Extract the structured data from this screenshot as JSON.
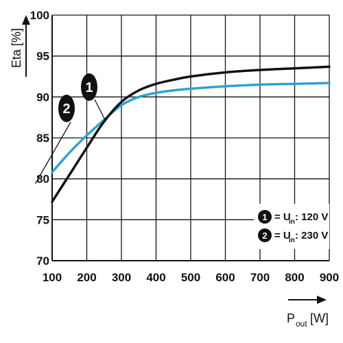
{
  "chart_data": {
    "type": "line",
    "xlabel": "P",
    "xlabel_sub": "out",
    "xlabel_unit": "[W]",
    "ylabel": "Eta [%]",
    "xlim": [
      100,
      900
    ],
    "ylim": [
      70,
      100
    ],
    "xticks": [
      "100",
      "200",
      "300",
      "400",
      "500",
      "600",
      "700",
      "800",
      "900"
    ],
    "yticks": [
      "70",
      "75",
      "80",
      "85",
      "90",
      "95",
      "100"
    ],
    "grid": true,
    "legend_position": "bottom-right",
    "series": [
      {
        "name": "1",
        "color": "#111111",
        "x": [
          100,
          150,
          200,
          250,
          300,
          350,
          400,
          450,
          500,
          600,
          700,
          800,
          900
        ],
        "y": [
          77.2,
          80.5,
          83.8,
          87.0,
          89.4,
          90.8,
          91.6,
          92.1,
          92.5,
          93.0,
          93.3,
          93.5,
          93.7
        ]
      },
      {
        "name": "2",
        "color": "#2ba3d6",
        "x": [
          100,
          150,
          200,
          250,
          300,
          350,
          400,
          450,
          500,
          600,
          700,
          800,
          900
        ],
        "y": [
          80.8,
          83.2,
          85.3,
          87.2,
          89.0,
          90.0,
          90.5,
          90.8,
          91.0,
          91.3,
          91.5,
          91.6,
          91.7
        ]
      }
    ],
    "legend": [
      {
        "marker": "1",
        "prefix": "= U",
        "sub": "in",
        "value": ": 120 V"
      },
      {
        "marker": "2",
        "prefix": "= U",
        "sub": "in",
        "value": ": 230 V"
      }
    ],
    "annotations": [
      {
        "label": "1",
        "x": 255,
        "y": 87.0
      },
      {
        "label": "2",
        "x": 190,
        "y": 82.5
      }
    ]
  }
}
